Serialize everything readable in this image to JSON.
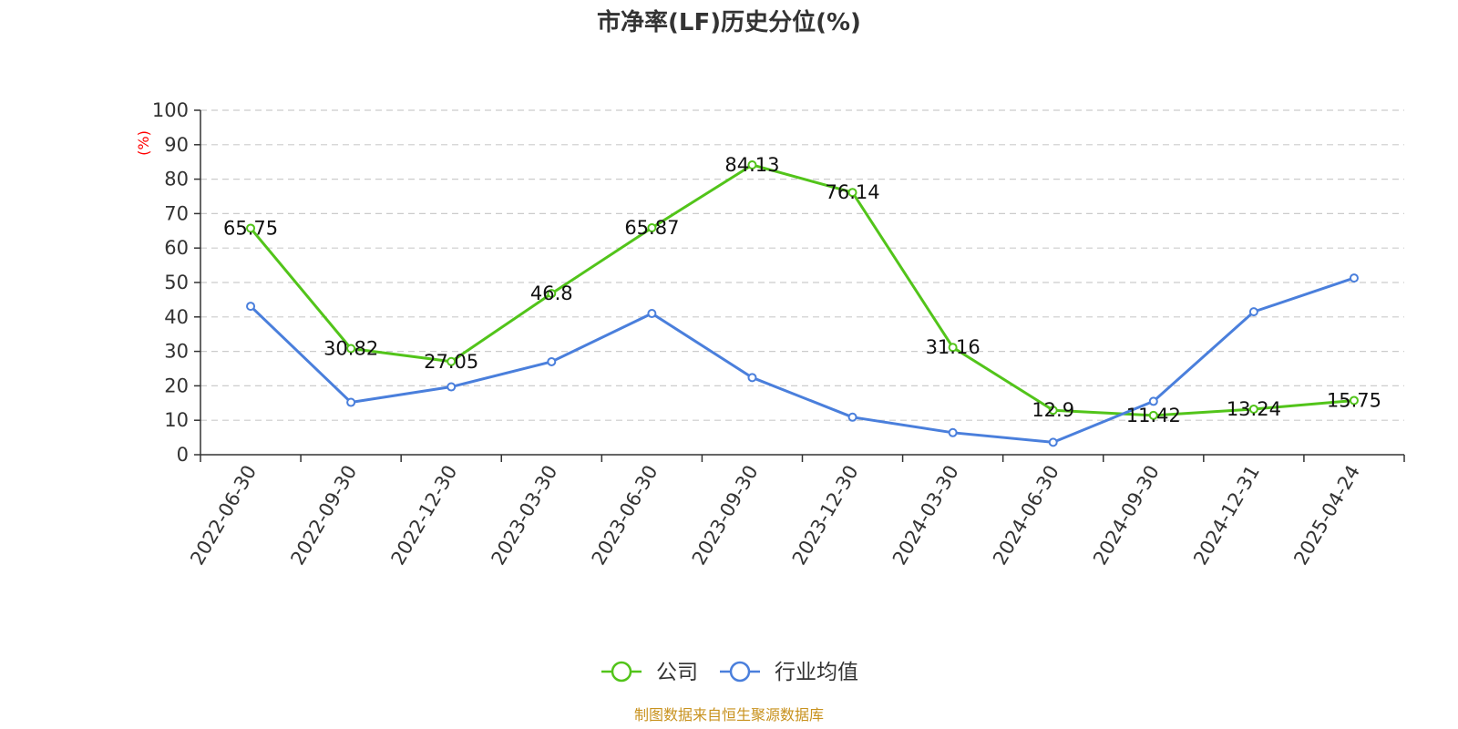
{
  "chart_data": {
    "type": "line",
    "title": "市净率(LF)历史分位(%)",
    "ylabel": "(%)",
    "xlabel": "",
    "ylim": [
      0,
      100
    ],
    "yticks": [
      "0",
      "10",
      "20",
      "30",
      "40",
      "50",
      "60",
      "70",
      "80",
      "90",
      "100"
    ],
    "categories": [
      "2022-06-30",
      "2022-09-30",
      "2022-12-30",
      "2023-03-30",
      "2023-06-30",
      "2023-09-30",
      "2023-12-30",
      "2024-03-30",
      "2024-06-30",
      "2024-09-30",
      "2024-12-31",
      "2025-04-24"
    ],
    "grid": true,
    "legend_position": "bottom-center",
    "series": [
      {
        "name": "公司",
        "color": "#52c41a",
        "values": [
          65.75,
          30.82,
          27.05,
          46.8,
          65.87,
          84.13,
          76.14,
          31.16,
          12.9,
          11.42,
          13.24,
          15.75
        ],
        "labels": [
          "65.75",
          "30.82",
          "27.05",
          "46.8",
          "65.87",
          "84.13",
          "76.14",
          "31.16",
          "12.9",
          "11.42",
          "13.24",
          "15.75"
        ]
      },
      {
        "name": "行业均值",
        "color": "#4a7fdc",
        "values": [
          43.1,
          15.2,
          19.7,
          27.0,
          41.0,
          22.4,
          10.9,
          6.4,
          3.6,
          15.5,
          41.5,
          51.3
        ]
      }
    ]
  },
  "footer": {
    "source": "制图数据来自恒生聚源数据库"
  },
  "colors": {
    "unit": "#ff0000",
    "source": "#c8921e",
    "axis": "#333333",
    "grid": "#cccccc"
  }
}
